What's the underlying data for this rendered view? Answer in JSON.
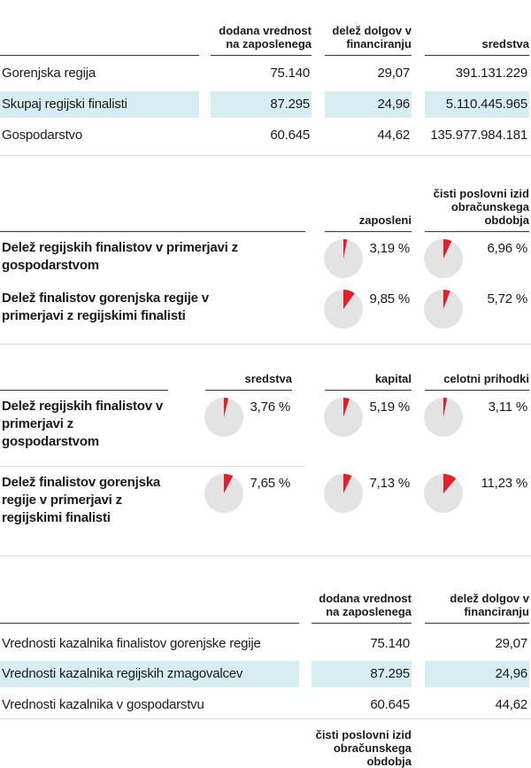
{
  "table1": {
    "headers": [
      "dodana vrednost na zaposlenega",
      "delež dolgov v financiranju",
      "sredstva"
    ],
    "rows": [
      [
        "Gorenjska regija",
        "75.140",
        "29,07",
        "391.131.229"
      ],
      [
        "Skupaj regijski finalisti",
        "87.295",
        "24,96",
        "5.110.445.965"
      ],
      [
        "Gospodarstvo",
        "60.645",
        "44,62",
        "135.977.984.181"
      ]
    ]
  },
  "shares1": {
    "headers": [
      "zaposleni",
      "čisti poslovni izid obračunskega obdobja"
    ],
    "rows": [
      {
        "label": "Delež regijskih finalistov v primerjavi z gospodarstvom",
        "values": [
          {
            "value": 3.19,
            "label": "3,19 %"
          },
          {
            "value": 6.96,
            "label": "6,96 %"
          }
        ]
      },
      {
        "label": "Delež finalistov gorenjska regije v primerjavi z regijskimi finalisti",
        "values": [
          {
            "value": 9.85,
            "label": "9,85 %"
          },
          {
            "value": 5.72,
            "label": "5,72 %"
          }
        ]
      }
    ]
  },
  "shares2": {
    "headers": [
      "sredstva",
      "kapital",
      "celotni prihodki"
    ],
    "rows": [
      {
        "label": "Delež regijskih finalistov v primerjavi z gospodarstvom",
        "values": [
          {
            "value": 3.76,
            "label": "3,76 %"
          },
          {
            "value": 5.19,
            "label": "5,19 %"
          },
          {
            "value": 3.11,
            "label": "3,11 %"
          }
        ]
      },
      {
        "label": "Delež finalistov gorenjska regije v primerjavi z regijskimi finalisti",
        "values": [
          {
            "value": 7.65,
            "label": "7,65 %"
          },
          {
            "value": 7.13,
            "label": "7,13 %"
          },
          {
            "value": 11.23,
            "label": "11,23 %"
          }
        ]
      }
    ]
  },
  "table2": {
    "headers": [
      "dodana vrednost na zaposlenega",
      "delež dolgov v financiranju"
    ],
    "rows": [
      [
        "Vrednosti kazalnika finalistov gorenjske regije",
        "75.140",
        "29,07"
      ],
      [
        "Vrednosti kazalnika regijskih zmagovalcev",
        "87.295",
        "24,96"
      ],
      [
        "Vrednosti kazalnika v gospodarstvu",
        "60.645",
        "44,62"
      ]
    ]
  },
  "table3": {
    "headers": [
      "čisti poslovni izid obračunskega obdobja"
    ]
  }
}
